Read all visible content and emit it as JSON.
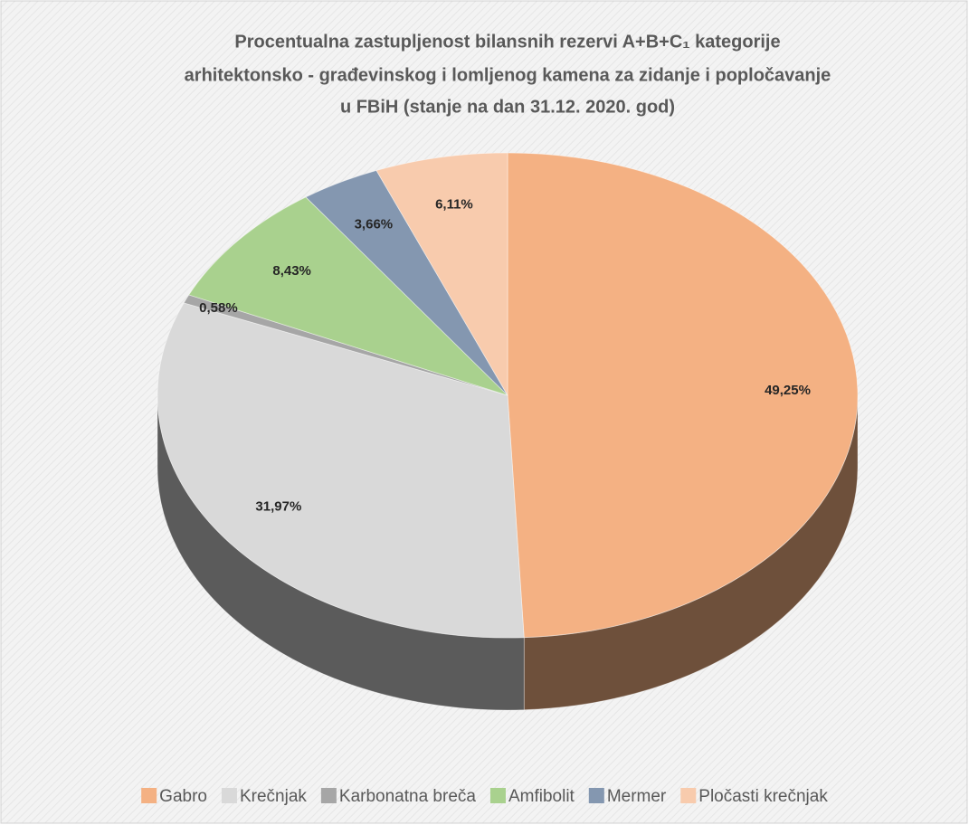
{
  "chart_data": {
    "type": "pie3d",
    "title": [
      "Procentualna zastupljenost bilansnih rezervi A+B+C₁ kategorije",
      "arhitektonsko - građevinskog  i lomljenog kamena za zidanje i popločavanje",
      "u FBiH  (stanje na dan 31.12. 2020. god)"
    ],
    "categories": [
      "Gabro",
      "Krečnjak",
      "Karbonatna breča",
      "Amfibolit",
      "Mermer",
      "Pločasti krečnjak"
    ],
    "values": [
      49.25,
      31.97,
      0.58,
      8.43,
      3.66,
      6.11
    ],
    "value_labels": [
      "49,25%",
      "31,97%",
      "0,58%",
      "8,43%",
      "3,66%",
      "6,11%"
    ],
    "colors": [
      "#f4b183",
      "#d9d9d9",
      "#a6a6a6",
      "#a9d18e",
      "#8497b0",
      "#f8cbad"
    ],
    "legend": "bottom"
  }
}
